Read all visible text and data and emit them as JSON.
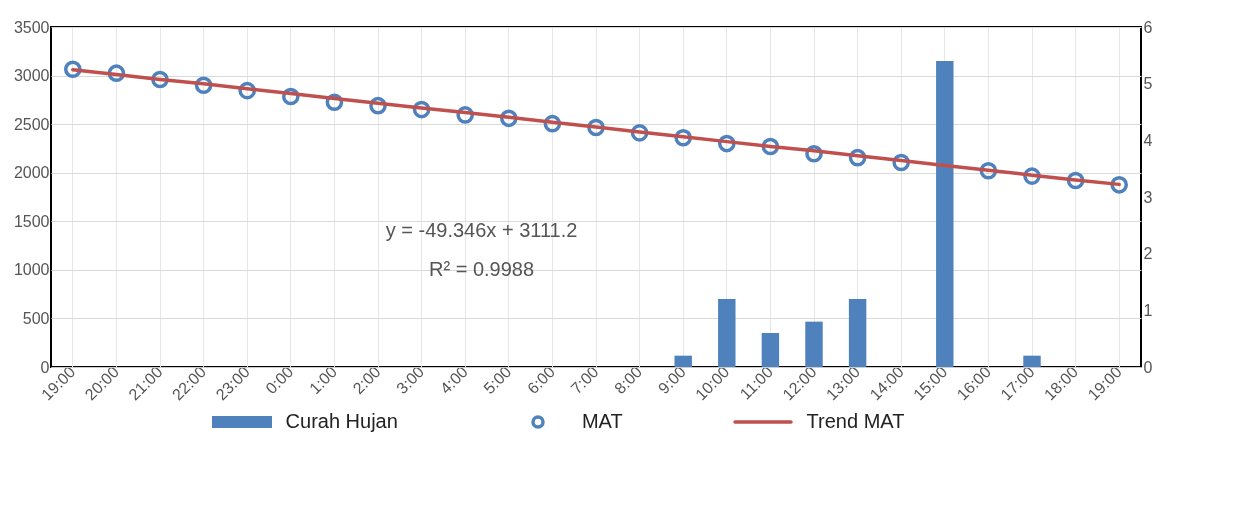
{
  "chart_data": {
    "type": "bar",
    "categories": [
      "19:00",
      "20:00",
      "21:00",
      "22:00",
      "23:00",
      "0:00",
      "1:00",
      "2:00",
      "3:00",
      "4:00",
      "5:00",
      "6:00",
      "7:00",
      "8:00",
      "9:00",
      "10:00",
      "11:00",
      "12:00",
      "13:00",
      "14:00",
      "15:00",
      "16:00",
      "17:00",
      "18:00",
      "19:00"
    ],
    "series": [
      {
        "name": "Curah Hujan",
        "axis": "y2",
        "color": "#4f81bd",
        "values": [
          0,
          0,
          0,
          0,
          0,
          0,
          0,
          0,
          0,
          0,
          0,
          0,
          0,
          0,
          0.2,
          1.2,
          0.6,
          0.8,
          1.2,
          0,
          5.4,
          0,
          0.2,
          0,
          0
        ]
      },
      {
        "name": "MAT",
        "type": "scatter",
        "color": "#4f81bd",
        "values": [
          3065,
          3025,
          2960,
          2900,
          2845,
          2785,
          2725,
          2690,
          2650,
          2595,
          2560,
          2505,
          2465,
          2410,
          2360,
          2300,
          2270,
          2195,
          2155,
          2105,
          null,
          2020,
          1965,
          1920,
          1875
        ]
      },
      {
        "name": "Trend MAT",
        "type": "line",
        "color": "#c0504d",
        "values": [
          3060,
          3010,
          2960,
          2915,
          2865,
          2815,
          2765,
          2715,
          2665,
          2620,
          2570,
          2520,
          2470,
          2420,
          2370,
          2320,
          2270,
          2225,
          2175,
          2125,
          2075,
          2025,
          1975,
          1925,
          1880
        ]
      }
    ],
    "ylim": [
      0,
      3500
    ],
    "yticks": [
      0,
      500,
      1000,
      1500,
      2000,
      2500,
      3000,
      3500
    ],
    "y2lim": [
      0,
      6
    ],
    "y2ticks": [
      0,
      1,
      2,
      3,
      4,
      5,
      6
    ],
    "grid": true,
    "legend": "bottom",
    "annotations": [
      "y = -49.346x + 3111.2",
      "R² = 0.9988"
    ]
  }
}
